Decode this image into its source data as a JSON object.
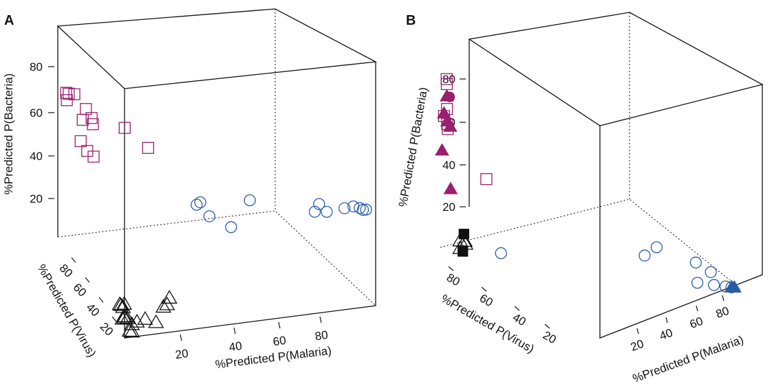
{
  "colors": {
    "bacteria": "#9a1f6e",
    "malaria": "#2a5ba8",
    "virus": "#111111"
  },
  "chart_data": [
    {
      "panel": "A",
      "type": "scatter3d",
      "xlabel": "%Predicted P(Malaria)",
      "ylabel": "%Predicted P(Virus)",
      "zlabel": "%Predicted P(Bacteria)",
      "x_ticks": [
        "20",
        "40",
        "60",
        "80"
      ],
      "y_ticks": [
        "80",
        "60",
        "40",
        "20"
      ],
      "z_ticks": [
        "20",
        "40",
        "60",
        "80"
      ],
      "series": [
        {
          "group": "bacteria",
          "marker": "open-square",
          "points": [
            [
              2,
              3,
              70
            ],
            [
              3,
              2,
              69
            ],
            [
              2,
              4,
              67
            ],
            [
              5,
              1,
              68
            ],
            [
              8,
              4,
              62
            ],
            [
              7,
              4,
              57
            ],
            [
              10,
              3,
              57
            ],
            [
              10,
              5,
              55
            ],
            [
              3,
              20,
              55
            ],
            [
              20,
              5,
              52
            ],
            [
              8,
              6,
              43
            ],
            [
              10,
              6,
              40
            ],
            [
              28,
              2,
              40
            ]
          ]
        },
        {
          "group": "malaria",
          "marker": "open-circle",
          "points": [
            [
              42,
              8,
              14
            ],
            [
              44,
              4,
              13
            ],
            [
              60,
              2,
              11
            ],
            [
              46,
              8,
              8
            ],
            [
              52,
              12,
              4
            ],
            [
              80,
              4,
              4
            ],
            [
              84,
              3,
              3
            ],
            [
              82,
              1,
              6
            ],
            [
              90,
              1,
              3
            ],
            [
              93,
              0,
              3
            ],
            [
              95,
              0,
              2
            ],
            [
              96,
              0,
              1
            ],
            [
              97,
              0,
              1
            ]
          ]
        },
        {
          "group": "virus",
          "marker": "open-triangle",
          "points": [
            [
              1,
              93,
              11
            ],
            [
              2,
              90,
              11
            ],
            [
              1,
              88,
              10
            ],
            [
              1,
              95,
              7
            ],
            [
              2,
              85,
              8
            ],
            [
              1,
              92,
              5
            ],
            [
              3,
              90,
              4
            ],
            [
              3,
              86,
              3
            ],
            [
              2,
              98,
              2
            ],
            [
              3,
              97,
              1
            ],
            [
              4,
              92,
              2
            ],
            [
              6,
              90,
              2
            ],
            [
              9,
              88,
              2
            ],
            [
              12,
              90,
              1
            ],
            [
              16,
              82,
              4
            ],
            [
              18,
              78,
              3
            ],
            [
              20,
              72,
              3
            ]
          ]
        }
      ]
    },
    {
      "panel": "B",
      "type": "scatter3d",
      "xlabel": "%Predicted P(Malaria)",
      "ylabel": "%Predicted P(Virus)",
      "zlabel": "%Predicted P(Bacteria)",
      "x_ticks": [
        "20",
        "40",
        "60",
        "80"
      ],
      "y_ticks": [
        "80",
        "60",
        "40",
        "20"
      ],
      "z_ticks": [
        "20",
        "40",
        "60",
        "80"
      ],
      "series": [
        {
          "group": "bacteria",
          "marker": "open-square",
          "points": [
            [
              2,
              2,
              68
            ],
            [
              2,
              3,
              66
            ],
            [
              2,
              4,
              56
            ],
            [
              1,
              4,
              53
            ],
            [
              2,
              5,
              50
            ],
            [
              2,
              8,
              48
            ],
            [
              15,
              6,
              30
            ]
          ]
        },
        {
          "group": "bacteria",
          "marker": "filled-triangle",
          "points": [
            [
              2,
              3,
              61
            ],
            [
              1,
              4,
              54
            ],
            [
              2,
              6,
              51
            ],
            [
              3,
              5,
              49
            ],
            [
              0,
              10,
              39
            ],
            [
              2,
              25,
              24
            ]
          ]
        },
        {
          "group": "bacteria",
          "marker": "filled-circle",
          "points": [
            [
              3,
              2,
              61
            ]
          ]
        },
        {
          "group": "malaria",
          "marker": "open-circle",
          "points": [
            [
              72,
              2,
              12
            ],
            [
              68,
              2,
              8
            ],
            [
              85,
              3,
              8
            ],
            [
              90,
              3,
              5
            ],
            [
              85,
              12,
              0
            ],
            [
              20,
              4,
              1
            ],
            [
              91,
              4,
              0
            ],
            [
              95,
              2,
              0
            ],
            [
              97,
              1,
              0
            ]
          ]
        },
        {
          "group": "malaria",
          "marker": "filled-triangle",
          "points": [
            [
              98,
              1,
              0
            ],
            [
              97,
              2,
              0
            ]
          ]
        },
        {
          "group": "virus",
          "marker": "open-triangle",
          "points": [
            [
              1,
              98,
              1
            ],
            [
              3,
              94,
              3
            ],
            [
              2,
              80,
              4
            ],
            [
              4,
              73,
              4
            ]
          ]
        },
        {
          "group": "virus",
          "marker": "filled-square",
          "points": [
            [
              2,
              96,
              0
            ],
            [
              3,
              85,
              7
            ]
          ]
        }
      ]
    }
  ]
}
